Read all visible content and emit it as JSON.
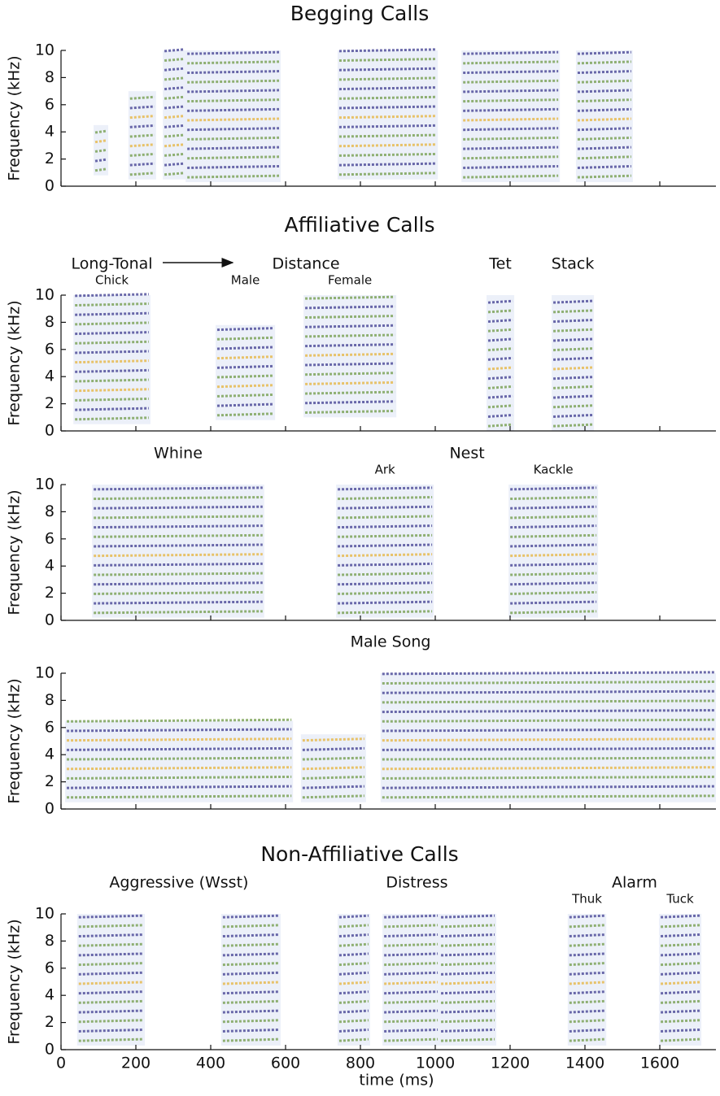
{
  "chart_data": [
    {
      "type": "spectrogram",
      "title": "Begging Calls",
      "ylabel": "Frequency (kHz)",
      "ylim": [
        0,
        10
      ],
      "yticks": [
        0,
        2,
        4,
        6,
        8,
        10
      ],
      "xlim": [
        0,
        1750
      ],
      "groups": [
        {
          "segments": [
            {
              "start": 87,
              "end": 126,
              "low": 0.8,
              "high": 4.5
            },
            {
              "start": 180,
              "end": 254,
              "low": 0.5,
              "high": 7
            },
            {
              "start": 272,
              "end": 333,
              "low": 0.5,
              "high": 10
            },
            {
              "start": 333,
              "end": 587,
              "low": 0.3,
              "high": 10
            },
            {
              "start": 739,
              "end": 1007,
              "low": 0.5,
              "high": 10
            },
            {
              "start": 1070,
              "end": 1333,
              "low": 0.3,
              "high": 10
            },
            {
              "start": 1376,
              "end": 1528,
              "low": 0.3,
              "high": 10
            }
          ]
        }
      ]
    },
    {
      "type": "spectrogram",
      "title": "Affiliative Calls",
      "ylabel": "Frequency (kHz)",
      "ylim": [
        0,
        10
      ],
      "yticks": [
        0,
        2,
        4,
        6,
        8,
        10
      ],
      "xlim": [
        0,
        1750
      ],
      "groups": [
        {
          "label": "Long-Tonal",
          "segments": [
            {
              "label": "Chick",
              "start": 33,
              "end": 239,
              "low": 0.5,
              "high": 10
            }
          ]
        },
        {
          "label": "Distance",
          "segments": [
            {
              "label": "Male",
              "start": 413,
              "end": 572,
              "low": 0.8,
              "high": 7.8
            },
            {
              "label": "Female",
              "start": 648,
              "end": 896,
              "low": 1,
              "high": 10
            }
          ]
        },
        {
          "label": "Tet",
          "segments": [
            {
              "start": 1137,
              "end": 1211,
              "low": 0,
              "high": 10
            }
          ]
        },
        {
          "label": "Stack",
          "segments": [
            {
              "start": 1311,
              "end": 1424,
              "low": 0,
              "high": 10
            }
          ]
        }
      ]
    },
    {
      "type": "spectrogram",
      "ylabel": "Frequency (kHz)",
      "ylim": [
        0,
        10
      ],
      "yticks": [
        0,
        2,
        4,
        6,
        8,
        10
      ],
      "xlim": [
        0,
        1750
      ],
      "groups": [
        {
          "label": "Whine",
          "segments": [
            {
              "start": 83,
              "end": 543,
              "low": 0.2,
              "high": 10
            }
          ]
        },
        {
          "label": "Nest",
          "segments": [
            {
              "label": "Ark",
              "start": 735,
              "end": 996,
              "low": 0.2,
              "high": 10
            },
            {
              "label": "Kackle",
              "start": 1196,
              "end": 1435,
              "low": 0.2,
              "high": 10
            }
          ]
        }
      ]
    },
    {
      "type": "spectrogram",
      "ylabel": "Frequency (kHz)",
      "ylim": [
        0,
        10
      ],
      "yticks": [
        0,
        2,
        4,
        6,
        8,
        10
      ],
      "xlim": [
        0,
        1750
      ],
      "groups": [
        {
          "label": "Male Song",
          "segments": [
            {
              "start": 11,
              "end": 620,
              "low": 0.5,
              "high": 6.5
            },
            {
              "start": 641,
              "end": 815,
              "low": 0.5,
              "high": 5.5
            },
            {
              "start": 854,
              "end": 1750,
              "low": 0.5,
              "high": 10
            }
          ]
        }
      ]
    },
    {
      "type": "spectrogram",
      "title": "Non-Affiliative Calls",
      "ylabel": "Frequency (kHz)",
      "xlabel": "time (ms)",
      "ylim": [
        0,
        10
      ],
      "yticks": [
        0,
        2,
        4,
        6,
        8,
        10
      ],
      "xlim": [
        0,
        1750
      ],
      "xticks": [
        0,
        200,
        400,
        600,
        800,
        1000,
        1200,
        1400,
        1600
      ],
      "groups": [
        {
          "label": "Aggressive (Wsst)",
          "segments": [
            {
              "start": 43,
              "end": 224,
              "low": 0.3,
              "high": 10
            },
            {
              "start": 428,
              "end": 587,
              "low": 0.3,
              "high": 10
            }
          ]
        },
        {
          "label": "Distress",
          "segments": [
            {
              "start": 739,
              "end": 826,
              "low": 0.3,
              "high": 10
            },
            {
              "start": 859,
              "end": 1011,
              "low": 0.3,
              "high": 10
            },
            {
              "start": 1011,
              "end": 1163,
              "low": 0.3,
              "high": 10
            }
          ]
        },
        {
          "label": "Alarm",
          "segments": [
            {
              "label": "Thuk",
              "start": 1354,
              "end": 1457,
              "low": 0.3,
              "high": 10
            },
            {
              "label": "Tuck",
              "start": 1598,
              "end": 1711,
              "low": 0.3,
              "high": 10
            }
          ]
        }
      ]
    }
  ]
}
